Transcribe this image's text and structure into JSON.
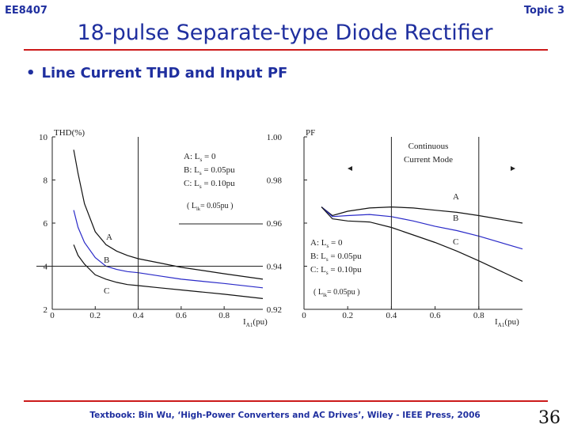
{
  "header": {
    "course": "EE8407",
    "topic": "Topic 3"
  },
  "slide": {
    "title": "18-pulse Separate-type Diode Rectifier",
    "bullet": "Line Current THD and Input PF"
  },
  "footer": {
    "textbook": "Textbook: Bin Wu, ‘High-Power Converters and AC Drives’, Wiley - IEEE Press, 2006",
    "page": "36"
  },
  "colors": {
    "accent": "#1f2f9f",
    "rule": "#cc1a1a",
    "curve": "#111111",
    "curve_b": "#2a2ac8"
  },
  "chart_data": [
    {
      "type": "line",
      "ylabel": "THD(%)",
      "xlabel_main": "I",
      "xlabel_sub": "A1",
      "xlabel_unit": "(pu)",
      "xlim": [
        0,
        0.98
      ],
      "ylim": [
        2,
        10
      ],
      "x_ticks": [
        "0",
        "0.2",
        "0.4",
        "0.6",
        "0.8"
      ],
      "y_ticks": [
        "2",
        "4",
        "6",
        "8",
        "10"
      ],
      "legend": [
        {
          "pre": "A: L",
          "sub": "s",
          "post": " = 0"
        },
        {
          "pre": "B: L",
          "sub": "s",
          "post": " = 0.05pu"
        },
        {
          "pre": "C: L",
          "sub": "s",
          "post": " = 0.10pu"
        }
      ],
      "note": {
        "pre": "( L",
        "sub": "lk",
        "post": "= 0.05pu )"
      },
      "series": [
        {
          "name": "A",
          "x": [
            0.1,
            0.12,
            0.15,
            0.2,
            0.25,
            0.3,
            0.35,
            0.4,
            0.5,
            0.6,
            0.7,
            0.8,
            0.98
          ],
          "y": [
            9.4,
            8.3,
            6.9,
            5.6,
            5.0,
            4.7,
            4.5,
            4.35,
            4.15,
            3.95,
            3.8,
            3.65,
            3.4
          ]
        },
        {
          "name": "B",
          "x": [
            0.1,
            0.12,
            0.15,
            0.2,
            0.25,
            0.3,
            0.35,
            0.4,
            0.5,
            0.6,
            0.7,
            0.8,
            0.98
          ],
          "y": [
            6.6,
            5.8,
            5.1,
            4.4,
            4.0,
            3.85,
            3.75,
            3.7,
            3.55,
            3.4,
            3.3,
            3.2,
            3.0
          ]
        },
        {
          "name": "C",
          "x": [
            0.1,
            0.12,
            0.15,
            0.2,
            0.25,
            0.3,
            0.35,
            0.4,
            0.5,
            0.6,
            0.7,
            0.8,
            0.98
          ],
          "y": [
            5.0,
            4.5,
            4.1,
            3.6,
            3.4,
            3.25,
            3.15,
            3.1,
            3.0,
            2.9,
            2.8,
            2.7,
            2.5
          ]
        }
      ]
    },
    {
      "type": "line",
      "ylabel": "PF",
      "xlabel_main": "I",
      "xlabel_sub": "A1",
      "xlabel_unit": "(pu)",
      "xlim": [
        0,
        1.0
      ],
      "ylim": [
        0.92,
        1.0
      ],
      "x_ticks": [
        "0",
        "0.2",
        "0.4",
        "0.6",
        "0.8"
      ],
      "y_ticks": [
        "0.92",
        "0.94",
        "0.96",
        "0.98",
        "1.00"
      ],
      "region_label": [
        "Continuous",
        "Current Mode"
      ],
      "legend": [
        {
          "pre": "A: L",
          "sub": "s",
          "post": " = 0"
        },
        {
          "pre": "B: L",
          "sub": "s",
          "post": " = 0.05pu"
        },
        {
          "pre": "C: L",
          "sub": "s",
          "post": " = 0.10pu"
        }
      ],
      "note": {
        "pre": "( L",
        "sub": "lk",
        "post": "= 0.05pu )"
      },
      "series": [
        {
          "name": "A",
          "x": [
            0.08,
            0.13,
            0.2,
            0.3,
            0.4,
            0.5,
            0.6,
            0.7,
            0.8,
            1.0
          ],
          "y": [
            0.9675,
            0.9635,
            0.9655,
            0.967,
            0.9675,
            0.967,
            0.966,
            0.965,
            0.9635,
            0.96
          ]
        },
        {
          "name": "B",
          "x": [
            0.08,
            0.13,
            0.2,
            0.3,
            0.4,
            0.5,
            0.6,
            0.7,
            0.8,
            1.0
          ],
          "y": [
            0.9675,
            0.963,
            0.9635,
            0.964,
            0.963,
            0.961,
            0.9585,
            0.9565,
            0.954,
            0.948
          ]
        },
        {
          "name": "C",
          "x": [
            0.08,
            0.13,
            0.2,
            0.3,
            0.4,
            0.5,
            0.6,
            0.7,
            0.8,
            1.0
          ],
          "y": [
            0.9675,
            0.962,
            0.961,
            0.9605,
            0.958,
            0.9545,
            0.951,
            0.947,
            0.9425,
            0.933
          ]
        }
      ]
    }
  ]
}
